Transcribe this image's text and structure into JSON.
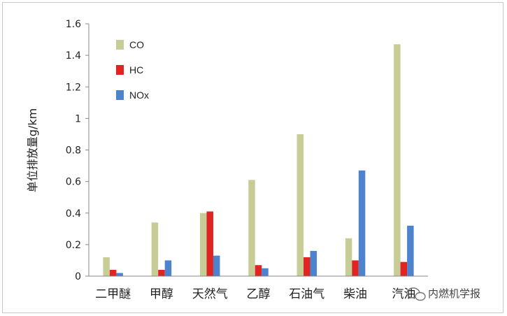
{
  "chart_data": {
    "type": "bar",
    "categories": [
      "二甲醚",
      "甲醇",
      "天然气",
      "乙醇",
      "石油气",
      "柴油",
      "汽油"
    ],
    "series": [
      {
        "name": "CO",
        "color": "#c8cc96",
        "values": [
          0.12,
          0.34,
          0.4,
          0.61,
          0.9,
          0.24,
          1.47
        ]
      },
      {
        "name": "HC",
        "color": "#e02424",
        "values": [
          0.04,
          0.04,
          0.41,
          0.07,
          0.12,
          0.1,
          0.09
        ]
      },
      {
        "name": "NOx",
        "color": "#4d82cc",
        "values": [
          0.02,
          0.1,
          0.13,
          0.05,
          0.16,
          0.67,
          0.32
        ]
      }
    ],
    "ylabel": "单位排放量g/km",
    "ylim": [
      0,
      1.6
    ],
    "yticks": [
      "0",
      "0.2",
      "0.4",
      "0.6",
      "0.8",
      "1",
      "1.2",
      "1.4",
      "1.6"
    ],
    "grid": false,
    "legend_position": "top-left"
  },
  "watermark": "内燃机学报"
}
